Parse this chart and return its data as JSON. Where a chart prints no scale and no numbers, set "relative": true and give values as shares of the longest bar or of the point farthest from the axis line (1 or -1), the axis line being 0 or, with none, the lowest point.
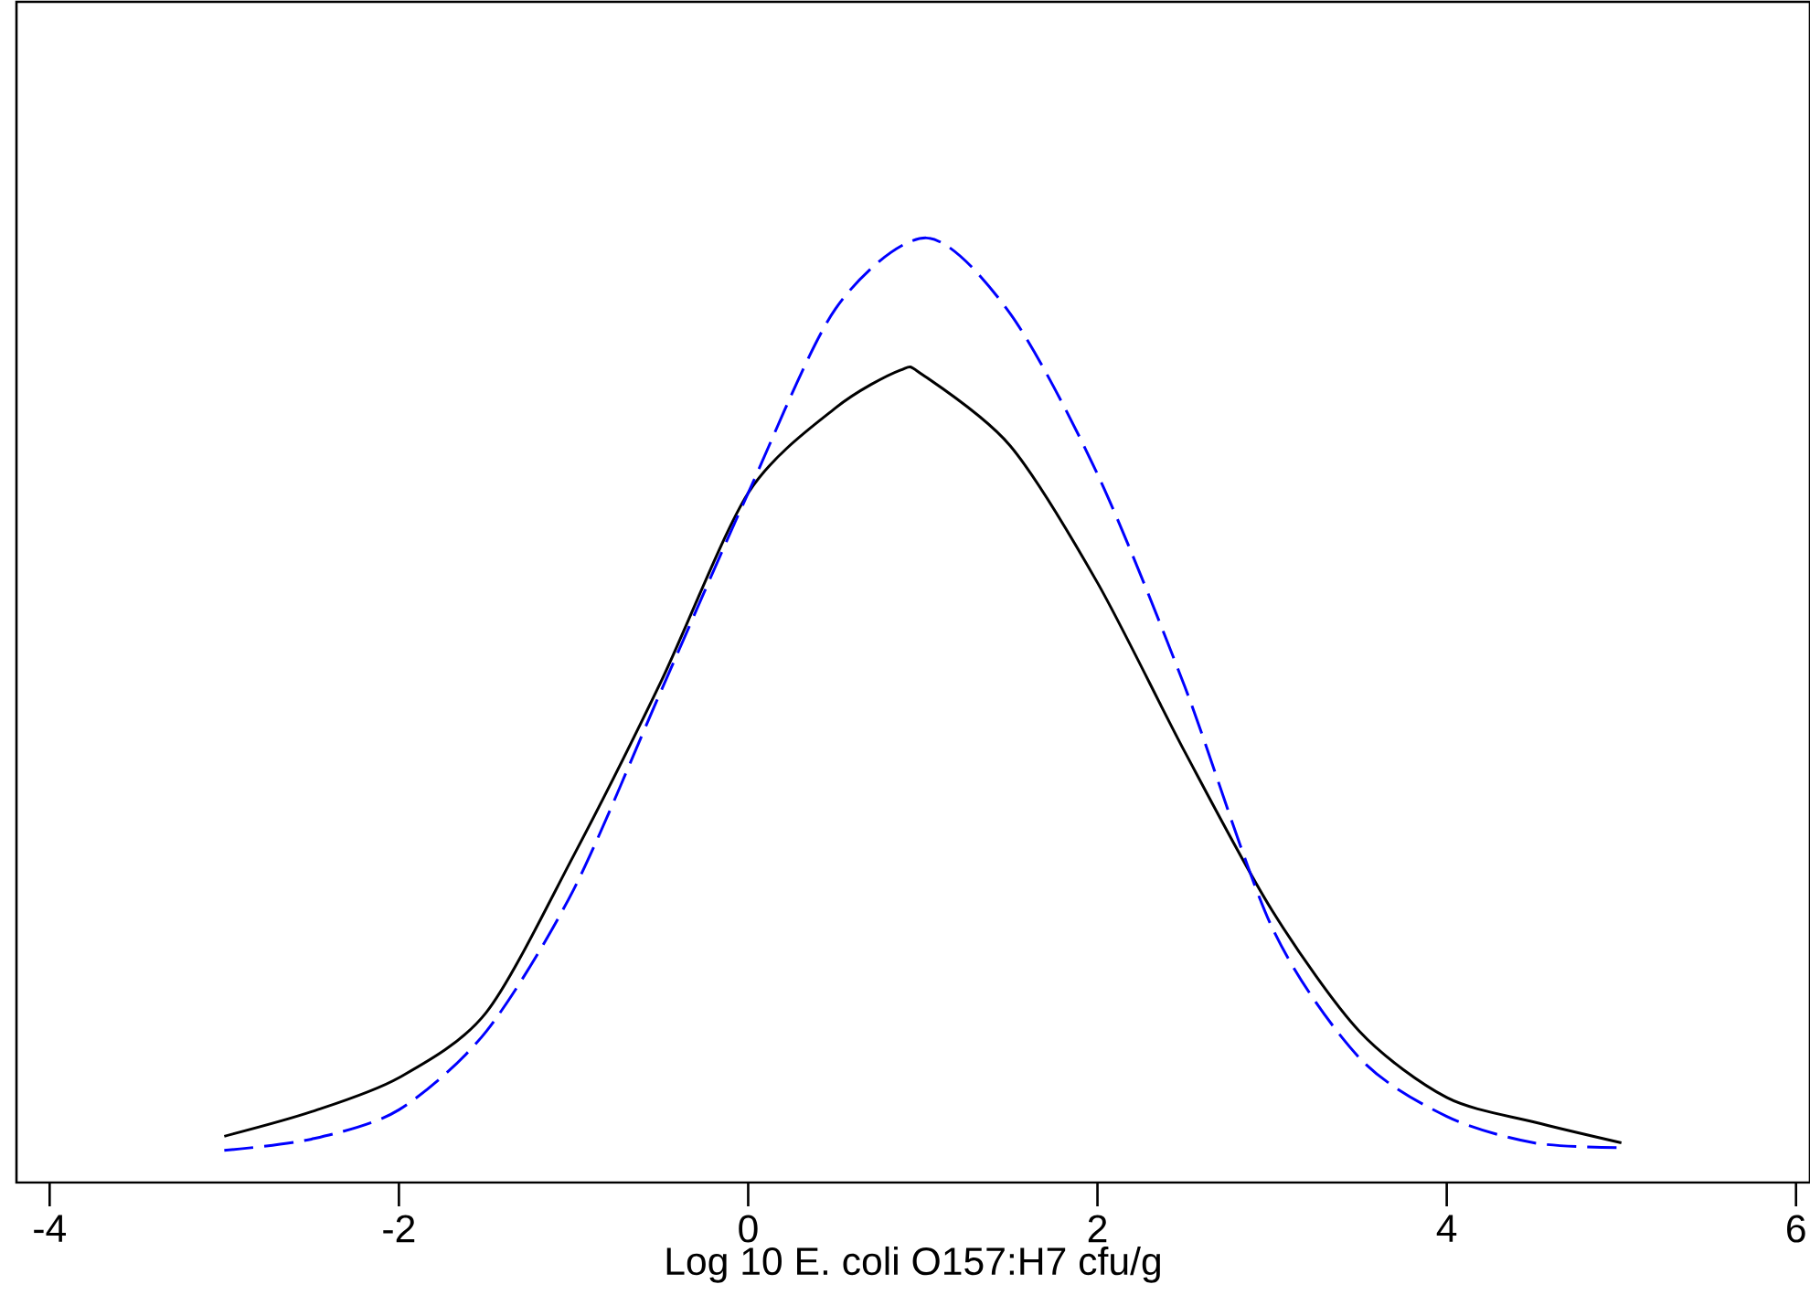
{
  "chart_data": {
    "type": "line",
    "xlabel": "Log 10 E. coli O157:H7 cfu/g",
    "relative": true,
    "xlim": [
      -4.19,
      6.08
    ],
    "xticks": [
      -4,
      -2,
      0,
      2,
      4,
      6
    ],
    "grid": false,
    "marker": "none",
    "series": [
      {
        "color": "#000000",
        "line_style": "solid",
        "x": [
          -3,
          -2.5,
          -2,
          -1.5,
          -1,
          -0.5,
          0,
          0.5,
          0.87,
          1,
          1.5,
          2,
          2.5,
          3,
          3.5,
          4,
          4.5,
          5
        ],
        "values": [
          0.049,
          0.075,
          0.111,
          0.18,
          0.346,
          0.53,
          0.73,
          0.82,
          0.86,
          0.855,
          0.78,
          0.635,
          0.456,
          0.288,
          0.16,
          0.09,
          0.064,
          0.042
        ]
      },
      {
        "color": "#0000ff",
        "line_style": "dashed",
        "x": [
          -3,
          -2.5,
          -2,
          -1.5,
          -1,
          -0.5,
          0,
          0.5,
          1.02,
          1.5,
          2,
          2.5,
          3,
          3.5,
          4,
          4.5,
          5
        ],
        "values": [
          0.034,
          0.046,
          0.077,
          0.16,
          0.31,
          0.52,
          0.73,
          0.925,
          1.0,
          0.92,
          0.75,
          0.525,
          0.27,
          0.132,
          0.07,
          0.042,
          0.037
        ]
      }
    ]
  }
}
